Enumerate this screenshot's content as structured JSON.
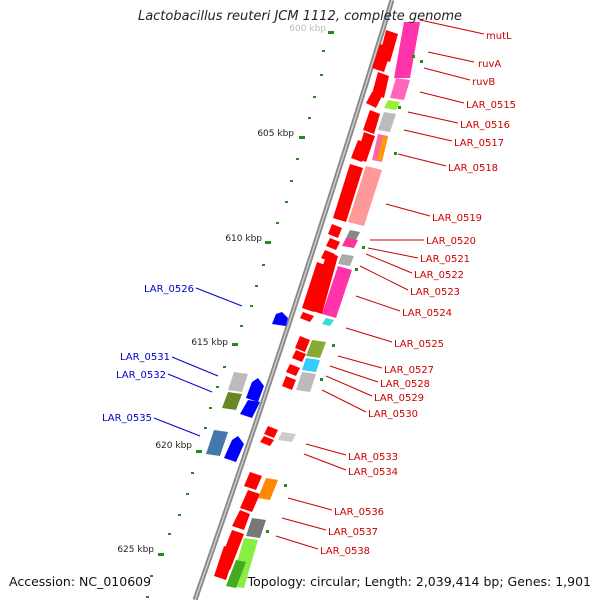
{
  "title": "Lactobacillus reuteri JCM 1112, complete genome",
  "footer": {
    "accession": "Accession: NC_010609",
    "summary": "Topology: circular; Length: 2,039,414 bp; Genes: 1,901"
  },
  "colors": {
    "forward_gene": "#ff0000",
    "reverse_gene": "#0000ff",
    "tick": "#1a8f1a",
    "backbone": "#888888",
    "right_label": "#cc0000",
    "left_label": "#0000cc"
  },
  "scale_labels": [
    "600 kbp",
    "605 kbp",
    "610 kbp",
    "615 kbp",
    "620 kbp",
    "625 kbp"
  ],
  "right_labels": [
    "mutL",
    "ruvA",
    "ruvB",
    "LAR_0515",
    "LAR_0516",
    "LAR_0517",
    "LAR_0518",
    "LAR_0519",
    "LAR_0520",
    "LAR_0521",
    "LAR_0522",
    "LAR_0523",
    "LAR_0524",
    "LAR_0525",
    "LAR_0527",
    "LAR_0528",
    "LAR_0529",
    "LAR_0530",
    "LAR_0533",
    "LAR_0534",
    "LAR_0536",
    "LAR_0537",
    "LAR_0538"
  ],
  "left_labels": [
    "LAR_0526",
    "LAR_0531",
    "LAR_0532",
    "LAR_0535"
  ]
}
